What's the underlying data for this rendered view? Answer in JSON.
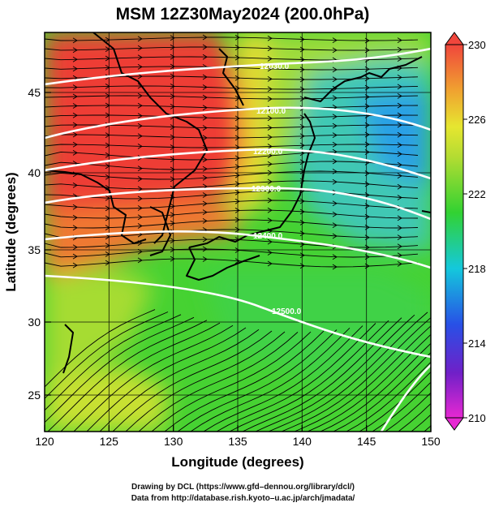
{
  "title": "MSM 12Z30May2024 (200.0hPa)",
  "x_axis": {
    "label": "Longitude (degrees)",
    "ticks": [
      "120",
      "125",
      "130",
      "135",
      "140",
      "145",
      "150"
    ]
  },
  "y_axis": {
    "label": "Latitude  (degrees)",
    "ticks": [
      "25",
      "30",
      "35",
      "40",
      "45"
    ]
  },
  "colorbar": {
    "ticks": [
      "210",
      "214",
      "218",
      "222",
      "226",
      "230"
    ]
  },
  "footer": {
    "line1": "Drawing by DCL (https://www.gfd–dennou.org/library/dcl/)",
    "line2": "Data from http://database.rish.kyoto–u.ac.jp/arch/jmadata/"
  },
  "contour_labels": [
    "12030.0",
    "12100.0",
    "12200.0",
    "12300.0",
    "12400.0",
    "12500.0"
  ],
  "map_data": {
    "type": "heatmap",
    "projection": "equirectangular",
    "lon_range": [
      120,
      150
    ],
    "lat_range": [
      22.4,
      47.6
    ],
    "variable_range": [
      210,
      230
    ],
    "colors": {
      "warm": "#f0463c",
      "orange": "#f07830",
      "yellow": "#e6e630",
      "green": "#46d232",
      "cyan": "#14c8dc",
      "blue": "#2850e6",
      "magenta": "#e628d2",
      "contour": "#ffffff",
      "vector": "#000000"
    }
  }
}
